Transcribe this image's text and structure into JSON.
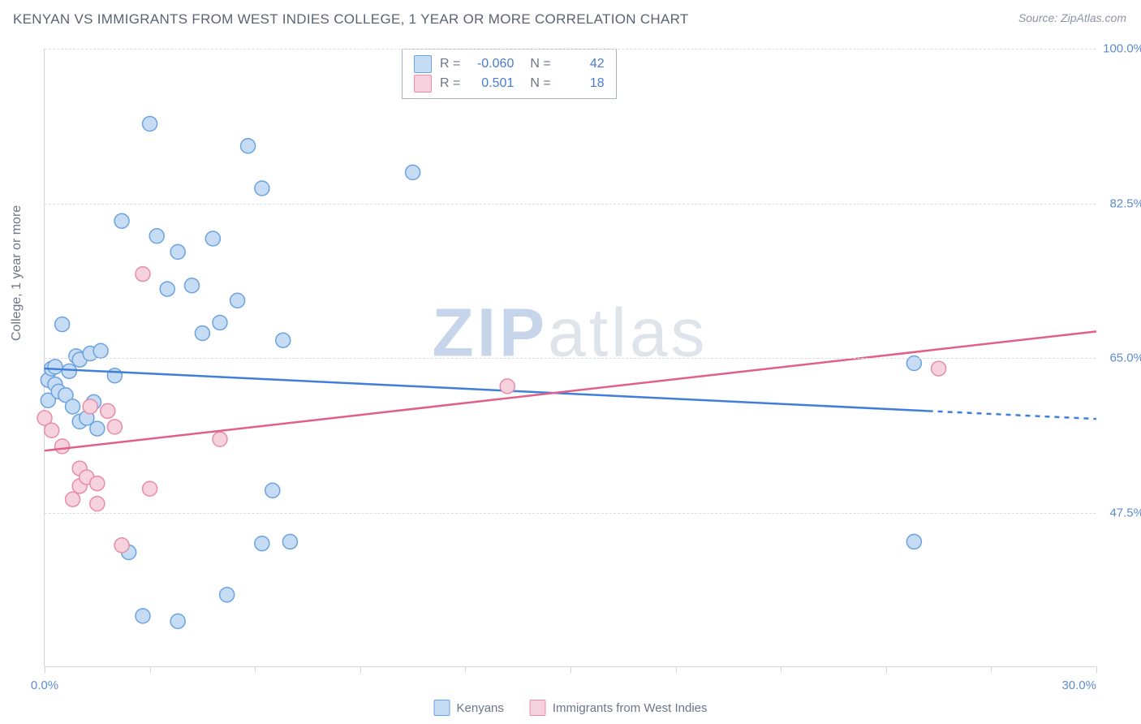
{
  "title": "KENYAN VS IMMIGRANTS FROM WEST INDIES COLLEGE, 1 YEAR OR MORE CORRELATION CHART",
  "source": "Source: ZipAtlas.com",
  "y_axis_label": "College, 1 year or more",
  "watermark": {
    "part1": "ZIP",
    "part2": "atlas"
  },
  "chart": {
    "type": "scatter-correlation",
    "background_color": "#ffffff",
    "grid_color": "#d8dde4",
    "axis_color": "#cfd6df",
    "xlim": [
      0,
      30
    ],
    "ylim": [
      30,
      100
    ],
    "y_gridlines": [
      47.5,
      65.0,
      82.5,
      100.0
    ],
    "y_tick_labels": [
      "47.5%",
      "65.0%",
      "82.5%",
      "100.0%"
    ],
    "x_ticks": [
      0,
      3,
      6,
      9,
      12,
      15,
      18,
      21,
      24,
      27,
      30
    ],
    "x_tick_labels": {
      "first": "0.0%",
      "last": "30.0%"
    },
    "marker_radius": 9,
    "marker_stroke_width": 1.5,
    "line_width": 2.5,
    "series": [
      {
        "name": "Kenyans",
        "fill": "#c6dbf4",
        "stroke": "#6ba3e0",
        "line_color": "#3f7fd9",
        "R": "-0.060",
        "N": "42",
        "regression": {
          "x1": 0,
          "y1": 63.8,
          "x2": 25.2,
          "y2": 59.0
        },
        "regression_dashed_ext": {
          "x1": 25.2,
          "y1": 59.0,
          "x2": 30,
          "y2": 58.1
        },
        "points": [
          [
            0.1,
            62.5
          ],
          [
            0.1,
            60.2
          ],
          [
            0.2,
            63.8
          ],
          [
            0.3,
            62.0
          ],
          [
            0.4,
            61.2
          ],
          [
            0.3,
            64.0
          ],
          [
            0.5,
            68.8
          ],
          [
            0.6,
            60.8
          ],
          [
            0.7,
            63.5
          ],
          [
            0.8,
            59.5
          ],
          [
            0.9,
            65.2
          ],
          [
            1.0,
            57.8
          ],
          [
            1.0,
            64.8
          ],
          [
            1.2,
            58.2
          ],
          [
            1.3,
            65.5
          ],
          [
            1.4,
            60.0
          ],
          [
            1.5,
            57.0
          ],
          [
            1.6,
            65.8
          ],
          [
            2.0,
            63.0
          ],
          [
            2.2,
            80.5
          ],
          [
            2.4,
            43.0
          ],
          [
            2.8,
            35.8
          ],
          [
            3.0,
            91.5
          ],
          [
            3.2,
            78.8
          ],
          [
            3.5,
            72.8
          ],
          [
            3.8,
            35.2
          ],
          [
            3.8,
            77.0
          ],
          [
            4.2,
            73.2
          ],
          [
            4.5,
            67.8
          ],
          [
            4.8,
            78.5
          ],
          [
            5.0,
            69.0
          ],
          [
            5.2,
            38.2
          ],
          [
            5.5,
            71.5
          ],
          [
            5.8,
            89.0
          ],
          [
            6.2,
            84.2
          ],
          [
            6.2,
            44.0
          ],
          [
            6.5,
            50.0
          ],
          [
            6.8,
            67.0
          ],
          [
            7.0,
            44.2
          ],
          [
            10.5,
            86.0
          ],
          [
            24.8,
            44.2
          ],
          [
            24.8,
            64.4
          ]
        ]
      },
      {
        "name": "Immigants_from_West_Indies",
        "display_name": "Immigrants from West Indies",
        "fill": "#f6d2de",
        "stroke": "#e88ca8",
        "line_color": "#e06088",
        "R": "0.501",
        "N": "18",
        "regression": {
          "x1": 0,
          "y1": 54.5,
          "x2": 30,
          "y2": 68.0
        },
        "points": [
          [
            0.0,
            58.2
          ],
          [
            0.2,
            56.8
          ],
          [
            0.5,
            55.0
          ],
          [
            0.8,
            49.0
          ],
          [
            1.0,
            52.5
          ],
          [
            1.0,
            50.5
          ],
          [
            1.2,
            51.5
          ],
          [
            1.3,
            59.5
          ],
          [
            1.5,
            50.8
          ],
          [
            1.5,
            48.5
          ],
          [
            1.8,
            59.0
          ],
          [
            2.0,
            57.2
          ],
          [
            2.2,
            43.8
          ],
          [
            2.8,
            74.5
          ],
          [
            3.0,
            50.2
          ],
          [
            5.0,
            55.8
          ],
          [
            13.2,
            61.8
          ],
          [
            25.5,
            63.8
          ]
        ]
      }
    ]
  },
  "legend_bottom": [
    "Kenyans",
    "Immigrants from West Indies"
  ],
  "corr_box": {
    "R_label": "R =",
    "N_label": "N ="
  }
}
